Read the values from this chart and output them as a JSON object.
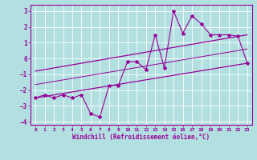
{
  "background_color": "#b2e0e0",
  "grid_color": "#ffffff",
  "line_color": "#990099",
  "marker_color": "#990099",
  "xlabel": "Windchill (Refroidissement éolien,°C)",
  "xlim": [
    -0.5,
    23.5
  ],
  "ylim": [
    -4.2,
    3.4
  ],
  "yticks": [
    -4,
    -3,
    -2,
    -1,
    0,
    1,
    2,
    3
  ],
  "xticks": [
    0,
    1,
    2,
    3,
    4,
    5,
    6,
    7,
    8,
    9,
    10,
    11,
    12,
    13,
    14,
    15,
    16,
    17,
    18,
    19,
    20,
    21,
    22,
    23
  ],
  "zigzag_x": [
    0,
    1,
    2,
    3,
    4,
    5,
    6,
    7,
    8,
    9,
    10,
    11,
    12,
    13,
    14,
    15,
    16,
    17,
    18,
    19,
    20,
    21,
    22,
    23
  ],
  "zigzag_y": [
    -2.5,
    -2.3,
    -2.5,
    -2.3,
    -2.5,
    -2.3,
    -3.5,
    -3.7,
    -1.7,
    -1.7,
    -0.2,
    -0.2,
    -0.7,
    1.5,
    -0.6,
    3.0,
    1.6,
    2.7,
    2.2,
    1.5,
    1.5,
    1.5,
    1.4,
    -0.3
  ],
  "upper_line_x": [
    0,
    23
  ],
  "upper_line_y": [
    -0.8,
    1.5
  ],
  "lower_line_x": [
    0,
    23
  ],
  "lower_line_y": [
    -2.5,
    -0.3
  ],
  "mid_line_x": [
    0,
    23
  ],
  "mid_line_y": [
    -1.65,
    0.6
  ],
  "font_family": "monospace"
}
